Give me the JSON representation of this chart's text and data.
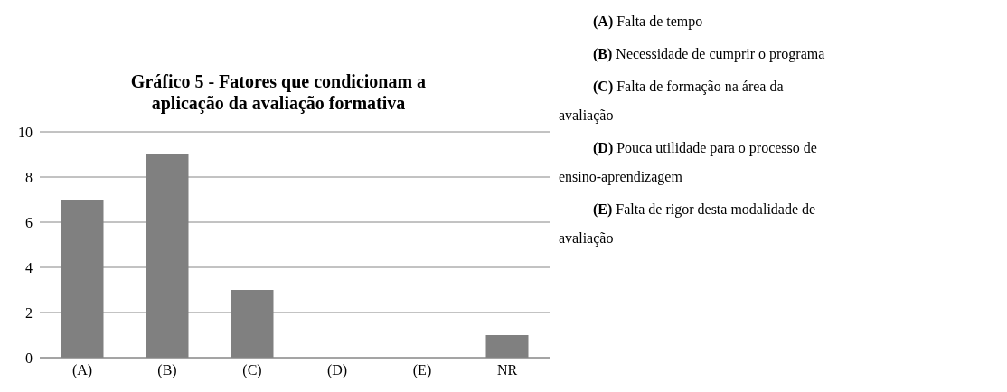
{
  "chart_data": {
    "type": "bar",
    "title": "Gráfico 5 - Fatores que condicionam a aplicação da avaliação formativa",
    "categories": [
      "(A)",
      "(B)",
      "(C)",
      "(D)",
      "(E)",
      "NR"
    ],
    "values": [
      7,
      9,
      3,
      0,
      0,
      1
    ],
    "color": "#808080",
    "ylim": [
      0,
      10
    ],
    "yticks": [
      0,
      2,
      4,
      6,
      8,
      10
    ],
    "grid": "y",
    "annotations": [
      "(A) Falta de tempo",
      "(B) Necessidade de cumprir o programa",
      "(C) Falta de formação na área da avaliação",
      "(D) Pouca utilidade para o processo de ensino-aprendizagem",
      "(E) Falta de rigor desta modalidade de avaliação"
    ]
  }
}
